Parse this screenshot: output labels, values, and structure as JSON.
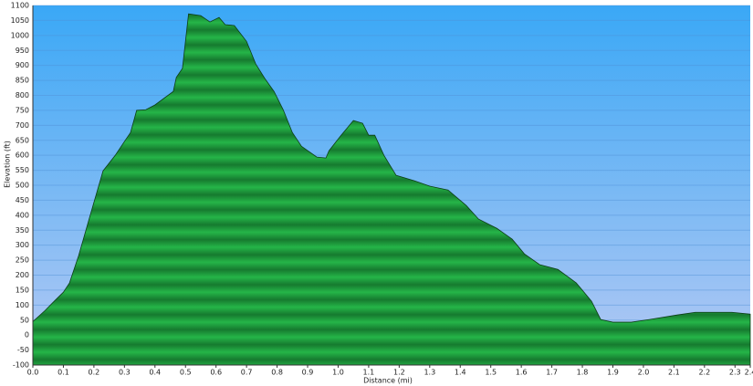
{
  "chart_data": {
    "type": "area",
    "x_label": "Distance  (mi)",
    "y_label": "Elevation (ft)",
    "color": "#1e9e3c",
    "x": [
      0,
      0.04,
      0.07,
      0.1,
      0.12,
      0.15,
      0.18,
      0.21,
      0.23,
      0.27,
      0.3,
      0.32,
      0.34,
      0.37,
      0.4,
      0.46,
      0.47,
      0.49,
      0.51,
      0.55,
      0.58,
      0.61,
      0.63,
      0.66,
      0.7,
      0.73,
      0.76,
      0.79,
      0.82,
      0.85,
      0.88,
      0.93,
      0.96,
      0.97,
      1.01,
      1.05,
      1.08,
      1.1,
      1.12,
      1.15,
      1.19,
      1.25,
      1.3,
      1.36,
      1.42,
      1.46,
      1.52,
      1.57,
      1.61,
      1.66,
      1.72,
      1.78,
      1.83,
      1.86,
      1.9,
      1.96,
      2.02,
      2.11,
      2.17,
      2.29,
      2.35
    ],
    "y": [
      45,
      82,
      113,
      143,
      174,
      265,
      372,
      478,
      548,
      600,
      646,
      676,
      750,
      752,
      768,
      813,
      860,
      890,
      1072,
      1066,
      1045,
      1060,
      1036,
      1033,
      980,
      905,
      856,
      813,
      752,
      676,
      630,
      594,
      591,
      615,
      667,
      716,
      707,
      667,
      667,
      600,
      533,
      515,
      497,
      484,
      432,
      387,
      356,
      320,
      271,
      235,
      219,
      174,
      113,
      52,
      43,
      43,
      52,
      67,
      76,
      76,
      70
    ],
    "xlim": [
      0,
      2.35
    ],
    "xticks": [
      {
        "value": 0,
        "label": "0.0"
      },
      0.1,
      0.2,
      0.3,
      0.4,
      0.5,
      0.6,
      0.7,
      0.8,
      0.9,
      {
        "value": 1,
        "label": "1.0"
      },
      1.1,
      1.2,
      1.3,
      1.4,
      1.5,
      1.6,
      1.7,
      1.8,
      1.9,
      {
        "value": 2,
        "label": "2.0"
      },
      2.1,
      2.2,
      2.3,
      {
        "value": 2.35,
        "label": "2.4"
      }
    ],
    "ylim": [
      -100,
      1100
    ],
    "yticks": [
      -100,
      -50,
      0,
      50,
      100,
      150,
      200,
      250,
      300,
      350,
      400,
      450,
      500,
      550,
      600,
      650,
      700,
      750,
      800,
      850,
      900,
      950,
      1000,
      1050,
      1100
    ],
    "grid": true
  }
}
